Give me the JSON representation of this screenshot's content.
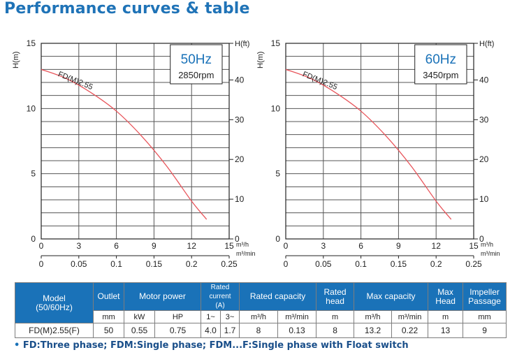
{
  "page_title": "Performance curves & table",
  "chart_data": [
    {
      "type": "line",
      "frequency_label": "50Hz",
      "rpm_label": "2850rpm",
      "curve_label": "FD(M)2.55",
      "ylabel_left": "H(m)",
      "ylabel_right": "H(ft)",
      "xlabel_m3h": "m³/h",
      "xlabel_m3min": "m³/min",
      "xlim": [
        0,
        15
      ],
      "ylim": [
        0,
        15
      ],
      "x_ticks_m3h": [
        "0",
        "3",
        "6",
        "9",
        "12",
        "15"
      ],
      "x_ticks_m3min": [
        "0",
        "0.05",
        "0.1",
        "0.15",
        "0.2",
        "0.25"
      ],
      "y_ticks_m": [
        "0",
        "5",
        "10",
        "15"
      ],
      "y_ticks_ft": [
        "0",
        "10",
        "20",
        "30",
        "40"
      ],
      "curve_color": "#e8545a",
      "series": [
        {
          "name": "FD(M)2.55",
          "x": [
            0,
            2,
            4,
            6,
            8,
            10,
            12,
            13.2
          ],
          "y": [
            13,
            12.3,
            11.2,
            9.8,
            7.9,
            5.6,
            2.9,
            1.5
          ]
        }
      ]
    },
    {
      "type": "line",
      "frequency_label": "60Hz",
      "rpm_label": "3450rpm",
      "curve_label": "FD(M)2.55",
      "ylabel_left": "H(m)",
      "ylabel_right": "H(ft)",
      "xlabel_m3h": "m³/h",
      "xlabel_m3min": "m³/min",
      "xlim": [
        0,
        15
      ],
      "ylim": [
        0,
        15
      ],
      "x_ticks_m3h": [
        "0",
        "3",
        "6",
        "9",
        "12",
        "15"
      ],
      "x_ticks_m3min": [
        "0",
        "0.05",
        "0.1",
        "0.15",
        "0.2",
        "0.25"
      ],
      "y_ticks_m": [
        "0",
        "5",
        "10",
        "15"
      ],
      "y_ticks_ft": [
        "0",
        "10",
        "20",
        "30",
        "40"
      ],
      "curve_color": "#e8545a",
      "series": [
        {
          "name": "FD(M)2.55",
          "x": [
            0,
            2,
            4,
            6,
            8,
            10,
            12,
            13.2
          ],
          "y": [
            13,
            12.3,
            11.2,
            9.8,
            7.9,
            5.6,
            2.9,
            1.5
          ]
        }
      ]
    }
  ],
  "table": {
    "headers": {
      "model": "Model\n(50/60Hz)",
      "outlet": "Outlet",
      "motor_power": "Motor power",
      "rated_current": "Rated current\n(A)",
      "rated_capacity": "Rated capacity",
      "rated_head": "Rated\nhead",
      "max_capacity": "Max capacity",
      "max_head": "Max\nHead",
      "impeller_passage": "Impeller\nPassage"
    },
    "units": [
      "mm",
      "kW",
      "HP",
      "1~",
      "3~",
      "m³/h",
      "m³/min",
      "m",
      "m³/h",
      "m³/min",
      "m",
      "mm"
    ],
    "row": {
      "model": "FD(M)2.55(F)",
      "values": [
        "50",
        "0.55",
        "0.75",
        "4.0",
        "1.7",
        "8",
        "0.13",
        "8",
        "13.2",
        "0.22",
        "13",
        "9"
      ]
    }
  },
  "footnote": "FD:Three phase; FDM:Single phase; FDM...F:Single phase with Float switch",
  "footnote_bullet": "•"
}
